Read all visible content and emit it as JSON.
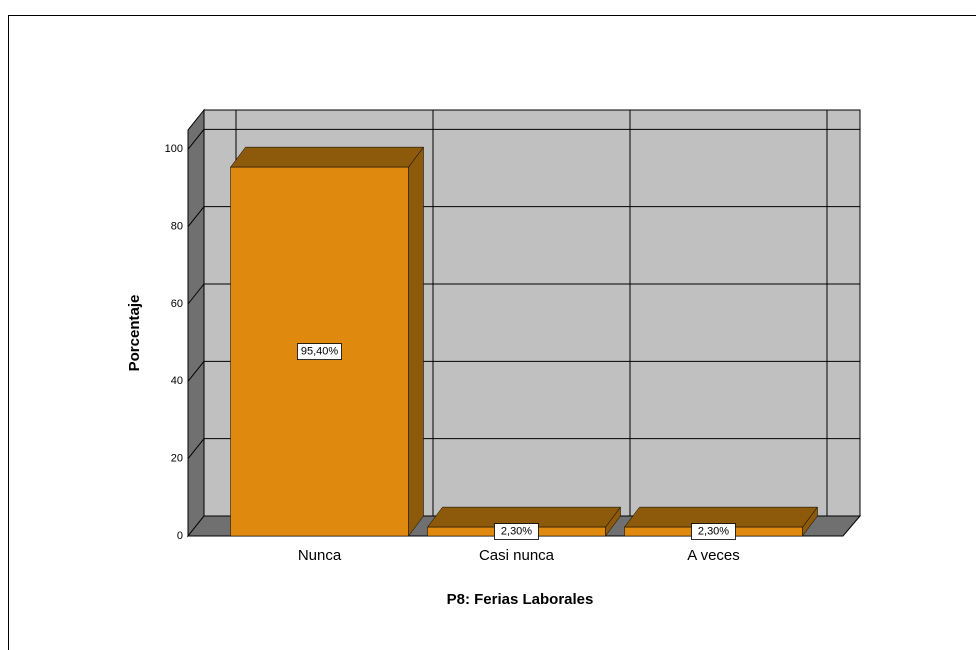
{
  "chart_data": {
    "type": "bar3d",
    "x_label": "P8: Ferias Laborales",
    "y_label": "Porcentaje",
    "categories": [
      "Nunca",
      "Casi nunca",
      "A veces"
    ],
    "values": [
      95.4,
      2.3,
      2.3
    ],
    "value_labels": [
      "95,40%",
      "2,30%",
      "2,30%"
    ],
    "color": "#e0890f",
    "ylim": [
      0,
      105
    ],
    "yticks": [
      0,
      20,
      40,
      60,
      80,
      100
    ],
    "grid": true
  }
}
